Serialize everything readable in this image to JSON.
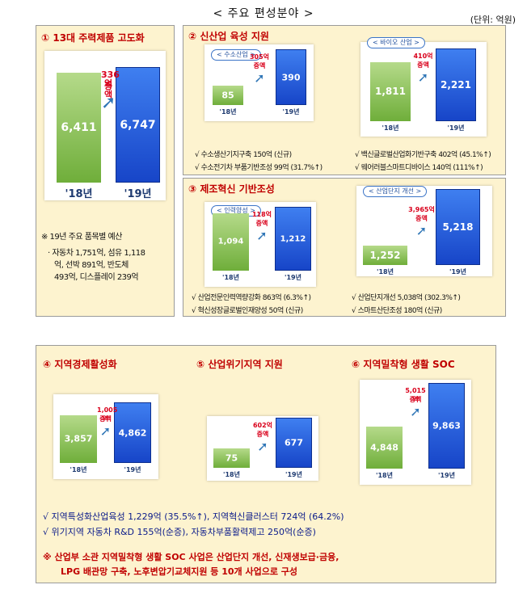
{
  "header": {
    "title": "< 주요 편성분야 >",
    "unit": "(단위: 억원)"
  },
  "sections": {
    "s1": {
      "title": "① 13대 주력제품 고도화",
      "note_title": "※ 19년 주요 품목별 예산",
      "note_lines": [
        "· 자동차 1,751억, 섬유 1,118",
        "억, 선박 891억, 반도체",
        "493억, 디스플레이 239억"
      ]
    },
    "s2": {
      "title": "② 신산업 육성 지원",
      "bullets_left": [
        "√ 수소생산기지구축 150억 (신규)",
        "√ 수소전기차 부품기반조성 99억 (31.7%↑)"
      ],
      "bullets_right": [
        "√ 백신글로벌산업화기반구축 402억 (45.1%↑)",
        "√ 웨어러블스마트디바이스 140억 (111%↑)"
      ]
    },
    "s3": {
      "title": "③ 제조혁신 기반조성",
      "bullets_left": [
        "√ 산업전문인력역량강화 863억 (6.3%↑)",
        "√ 혁신성장글로벌인재양성 50억 (신규)"
      ],
      "bullets_right": [
        "√ 산업단지개선 5,038억 (302.3%↑)",
        "√ 스마트산단조성 180억 (신규)"
      ]
    },
    "s4": {
      "title4": "④ 지역경제활성화",
      "title5": "⑤ 산업위기지역 지원",
      "title6": "⑥ 지역밀착형 생활 SOC",
      "bullets": [
        "√ 지역특성화산업육성 1,229억 (35.5%↑), 지역혁신클러스터 724억 (64.2%)",
        "√ 위기지역 자동차 R&D 155억(순증), 자동차부품활력제고 250억(순증)"
      ],
      "footer": [
        "※ 산업부 소관 지역밀착형 생활 SOC 사업은 산업단지 개선, 신재생보급·금융,",
        "LPG 배관망 구축, 노후변압기교체지원 등 10개 사업으로 구성"
      ]
    }
  },
  "chart_data": [
    {
      "type": "bar",
      "id": "c1",
      "tag": "",
      "categories": [
        "'18년",
        "'19년"
      ],
      "values": [
        6411,
        6747
      ],
      "value_labels": [
        "6,411",
        "6,747"
      ],
      "increase_amount": "336억",
      "increase_label": "증액"
    },
    {
      "type": "bar",
      "id": "c2",
      "tag": "< 수소산업 >",
      "categories": [
        "'18년",
        "'19년"
      ],
      "values": [
        85,
        390
      ],
      "value_labels": [
        "85",
        "390"
      ],
      "increase_amount": "305억",
      "increase_label": "증액"
    },
    {
      "type": "bar",
      "id": "c3",
      "tag": "< 바이오 산업 >",
      "categories": [
        "'18년",
        "'19년"
      ],
      "values": [
        1811,
        2221
      ],
      "value_labels": [
        "1,811",
        "2,221"
      ],
      "increase_amount": "410억",
      "increase_label": "증액"
    },
    {
      "type": "bar",
      "id": "c4",
      "tag": "< 인력양성 >",
      "categories": [
        "'18년",
        "'19년"
      ],
      "values": [
        1094,
        1212
      ],
      "value_labels": [
        "1,094",
        "1,212"
      ],
      "increase_amount": "118억",
      "increase_label": "증액"
    },
    {
      "type": "bar",
      "id": "c5",
      "tag": "< 산업단지 개선 >",
      "categories": [
        "'18년",
        "'19년"
      ],
      "values": [
        1252,
        5218
      ],
      "value_labels": [
        "1,252",
        "5,218"
      ],
      "increase_amount": "3,965억",
      "increase_label": "증액"
    },
    {
      "type": "bar",
      "id": "c6",
      "tag": "",
      "categories": [
        "'18년",
        "'19년"
      ],
      "values": [
        3857,
        4862
      ],
      "value_labels": [
        "3,857",
        "4,862"
      ],
      "increase_amount": "1,005억",
      "increase_label": "증액"
    },
    {
      "type": "bar",
      "id": "c7",
      "tag": "",
      "categories": [
        "'18년",
        "'19년"
      ],
      "values": [
        75,
        677
      ],
      "value_labels": [
        "75",
        "677"
      ],
      "increase_amount": "602억",
      "increase_label": "증액"
    },
    {
      "type": "bar",
      "id": "c8",
      "tag": "",
      "categories": [
        "'18년",
        "'19년"
      ],
      "values": [
        4848,
        9863
      ],
      "value_labels": [
        "4,848",
        "9,863"
      ],
      "increase_amount": "5,015억",
      "increase_label": "증액"
    }
  ]
}
